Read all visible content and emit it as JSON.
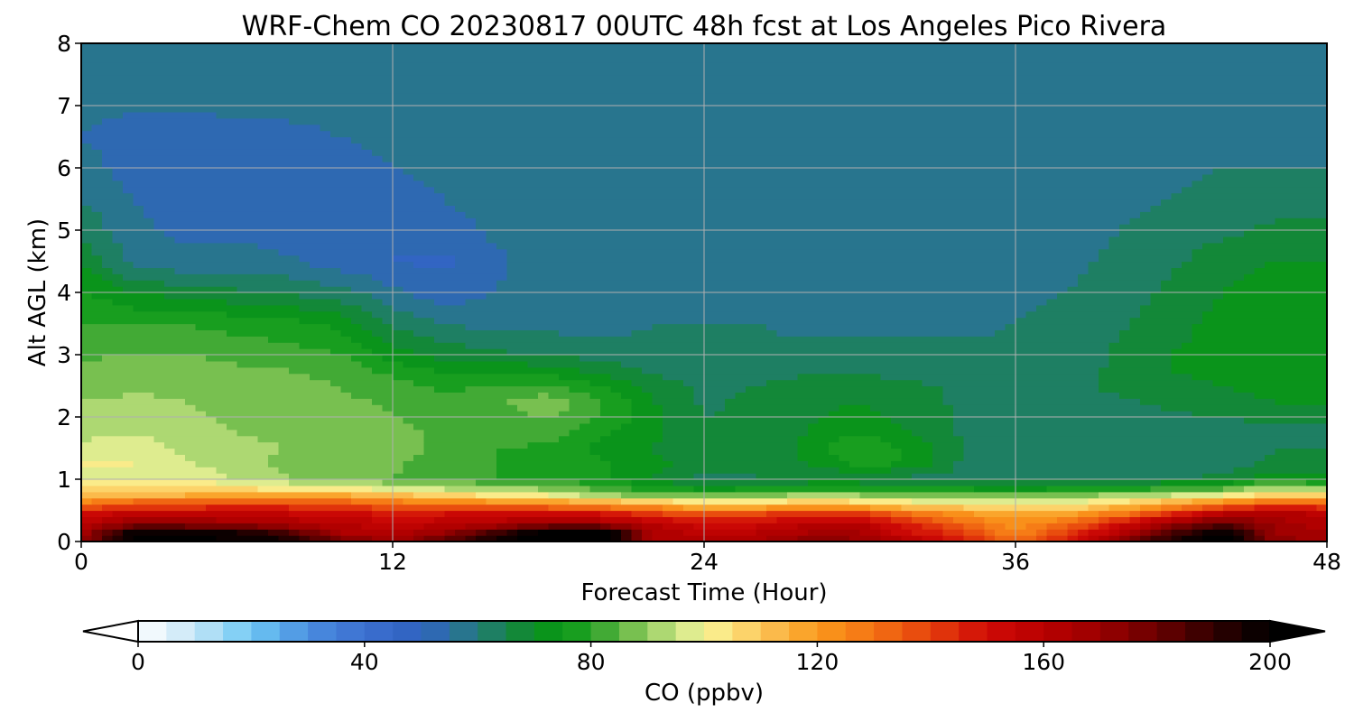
{
  "chart_data": {
    "type": "heatmap",
    "title": "WRF-Chem CO  20230817 00UTC 48h fcst at Los Angeles Pico Rivera",
    "xlabel": "Forecast Time (Hour)",
    "ylabel": "Alt AGL (km)",
    "xlim": [
      0,
      48
    ],
    "ylim": [
      0,
      8
    ],
    "x_ticks": [
      0,
      12,
      24,
      36,
      48
    ],
    "y_ticks": [
      0,
      1,
      2,
      3,
      4,
      5,
      6,
      7,
      8
    ],
    "grid": true,
    "x_hours": [
      0,
      2,
      4,
      6,
      8,
      10,
      12,
      14,
      16,
      18,
      20,
      22,
      24,
      26,
      28,
      30,
      32,
      34,
      36,
      38,
      40,
      42,
      44,
      46,
      48
    ],
    "z_km": [
      0,
      0.15,
      0.3,
      0.45,
      0.6,
      0.75,
      0.9,
      1.05,
      1.25,
      1.5,
      1.75,
      2.0,
      2.25,
      2.5,
      2.75,
      3.0,
      3.5,
      4.0,
      4.5,
      5.0,
      5.5,
      6.0,
      6.5,
      7.0,
      7.5,
      8.0
    ],
    "co_ppbv": [
      [
        170,
        205,
        205,
        200,
        198,
        180,
        168,
        185,
        200,
        210,
        215,
        165,
        162,
        165,
        175,
        172,
        160,
        150,
        130,
        150,
        175,
        195,
        210,
        172,
        168
      ],
      [
        165,
        200,
        200,
        195,
        185,
        165,
        160,
        170,
        188,
        205,
        210,
        163,
        158,
        160,
        165,
        165,
        150,
        140,
        125,
        140,
        160,
        185,
        200,
        170,
        165
      ],
      [
        160,
        170,
        170,
        168,
        163,
        160,
        155,
        158,
        162,
        168,
        165,
        160,
        150,
        152,
        160,
        160,
        145,
        132,
        122,
        130,
        150,
        168,
        182,
        168,
        162
      ],
      [
        150,
        158,
        158,
        156,
        155,
        152,
        148,
        150,
        152,
        155,
        150,
        142,
        135,
        138,
        145,
        142,
        130,
        122,
        115,
        118,
        128,
        145,
        160,
        162,
        158
      ],
      [
        130,
        138,
        138,
        140,
        140,
        138,
        132,
        130,
        128,
        125,
        122,
        118,
        108,
        110,
        115,
        112,
        106,
        104,
        100,
        102,
        110,
        120,
        130,
        140,
        138
      ],
      [
        112,
        115,
        115,
        118,
        118,
        116,
        112,
        108,
        103,
        100,
        92,
        86,
        86,
        88,
        92,
        90,
        88,
        86,
        86,
        88,
        92,
        95,
        100,
        108,
        105
      ],
      [
        102,
        105,
        104,
        100,
        97,
        94,
        92,
        88,
        86,
        84,
        80,
        74,
        68,
        70,
        72,
        72,
        70,
        70,
        68,
        70,
        72,
        74,
        78,
        88,
        82
      ],
      [
        98,
        100,
        98,
        94,
        90,
        87,
        85,
        82,
        80,
        78,
        76,
        70,
        64,
        65,
        66,
        66,
        65,
        64,
        64,
        64,
        63,
        63,
        66,
        72,
        70
      ],
      [
        100,
        100,
        96,
        92,
        88,
        86,
        86,
        82,
        80,
        78,
        76,
        72,
        66,
        66,
        70,
        76,
        74,
        64,
        62,
        62,
        62,
        62,
        63,
        66,
        66
      ],
      [
        96,
        98,
        94,
        91,
        90,
        88,
        87,
        84,
        80,
        79,
        74,
        70,
        66,
        66,
        72,
        80,
        74,
        65,
        62,
        62,
        62,
        63,
        63,
        65,
        65
      ],
      [
        94,
        95,
        92,
        90,
        89,
        88,
        86,
        84,
        82,
        82,
        76,
        72,
        65,
        66,
        70,
        75,
        70,
        64,
        62,
        62,
        63,
        63,
        63,
        64,
        64
      ],
      [
        92,
        93,
        91,
        89,
        88,
        87,
        85,
        83,
        82,
        86,
        80,
        72,
        65,
        66,
        69,
        72,
        68,
        64,
        62,
        62,
        63,
        64,
        65,
        66,
        66
      ],
      [
        90,
        91,
        90,
        88,
        87,
        86,
        84,
        82,
        84,
        88,
        80,
        70,
        64,
        66,
        68,
        70,
        67,
        64,
        63,
        63,
        64,
        66,
        68,
        70,
        70
      ],
      [
        88,
        89,
        89,
        87,
        86,
        85,
        82,
        79,
        80,
        82,
        75,
        68,
        64,
        65,
        67,
        68,
        66,
        64,
        63,
        64,
        66,
        68,
        70,
        72,
        72
      ],
      [
        86,
        88,
        88,
        86,
        85,
        84,
        78,
        74,
        74,
        72,
        68,
        64,
        62,
        63,
        64,
        64,
        63,
        62,
        62,
        63,
        66,
        70,
        72,
        74,
        74
      ],
      [
        84,
        85,
        85,
        83,
        82,
        80,
        72,
        68,
        66,
        65,
        63,
        61,
        61,
        61,
        61,
        61,
        61,
        61,
        61,
        62,
        66,
        70,
        72,
        74,
        74
      ],
      [
        80,
        80,
        80,
        78,
        77,
        74,
        64,
        60,
        58,
        58,
        58,
        60,
        60,
        60,
        59,
        59,
        59,
        59,
        60,
        61,
        64,
        68,
        72,
        74,
        74
      ],
      [
        76,
        70,
        68,
        66,
        64,
        62,
        56,
        52,
        55,
        58,
        58,
        59,
        59,
        60,
        59,
        59,
        59,
        59,
        59,
        60,
        63,
        66,
        70,
        74,
        74
      ],
      [
        70,
        58,
        56,
        57,
        56,
        52,
        50,
        49,
        54,
        57,
        57,
        58,
        58,
        59,
        59,
        59,
        59,
        59,
        59,
        59,
        61,
        64,
        68,
        70,
        70
      ],
      [
        64,
        56,
        54,
        54,
        52,
        51,
        50,
        53,
        56,
        57,
        58,
        58,
        58,
        58,
        59,
        59,
        59,
        58,
        58,
        58,
        60,
        62,
        64,
        66,
        66
      ],
      [
        60,
        55,
        53,
        52,
        51,
        51,
        53,
        55,
        57,
        57,
        58,
        58,
        58,
        58,
        58,
        58,
        58,
        58,
        58,
        58,
        59,
        60,
        62,
        63,
        63
      ],
      [
        58,
        52,
        51,
        51,
        52,
        53,
        55,
        56,
        57,
        57,
        58,
        58,
        58,
        58,
        58,
        58,
        58,
        58,
        58,
        58,
        58,
        59,
        60,
        60,
        60
      ],
      [
        55,
        52,
        52,
        53,
        54,
        55,
        56,
        57,
        57,
        57,
        58,
        58,
        58,
        58,
        58,
        58,
        58,
        58,
        58,
        58,
        58,
        58,
        58,
        58,
        58
      ],
      [
        56,
        56,
        56,
        56,
        56,
        56,
        57,
        57,
        57,
        57,
        57,
        57,
        57,
        57,
        57,
        57,
        57,
        57,
        57,
        57,
        57,
        57,
        57,
        57,
        57
      ],
      [
        57,
        57,
        57,
        57,
        57,
        57,
        57,
        57,
        57,
        57,
        57,
        57,
        57,
        57,
        57,
        57,
        57,
        57,
        57,
        57,
        57,
        57,
        57,
        57,
        57
      ],
      [
        57,
        57,
        57,
        57,
        57,
        57,
        57,
        57,
        57,
        57,
        57,
        57,
        57,
        57,
        57,
        57,
        57,
        57,
        57,
        57,
        57,
        57,
        57,
        57,
        57
      ]
    ],
    "colorbar": {
      "label": "CO  (ppbv)",
      "min": 0,
      "max": 200,
      "step": 5,
      "ticks": [
        0,
        40,
        80,
        120,
        160,
        200
      ],
      "extend": "both",
      "under_color": "#ffffff",
      "over_color": "#000000",
      "color_stops": [
        [
          0,
          "#ffffff"
        ],
        [
          10,
          "#c6e6f7"
        ],
        [
          20,
          "#6ec8f4"
        ],
        [
          30,
          "#4a8ee0"
        ],
        [
          40,
          "#3c6fd0"
        ],
        [
          50,
          "#2f62bf"
        ],
        [
          55,
          "#2c6fa4"
        ],
        [
          60,
          "#237a78"
        ],
        [
          70,
          "#0d8c22"
        ],
        [
          75,
          "#069b14"
        ],
        [
          80,
          "#2aa02a"
        ],
        [
          85,
          "#5ab440"
        ],
        [
          90,
          "#96cc60"
        ],
        [
          95,
          "#c4e484"
        ],
        [
          100,
          "#f7f49a"
        ],
        [
          105,
          "#fde17a"
        ],
        [
          110,
          "#fbc45a"
        ],
        [
          120,
          "#fa9a1c"
        ],
        [
          130,
          "#f47214"
        ],
        [
          140,
          "#e5400c"
        ],
        [
          150,
          "#d00a06"
        ],
        [
          160,
          "#b80000"
        ],
        [
          170,
          "#9a0000"
        ],
        [
          180,
          "#6a0000"
        ],
        [
          190,
          "#300000"
        ],
        [
          200,
          "#000000"
        ]
      ]
    }
  }
}
